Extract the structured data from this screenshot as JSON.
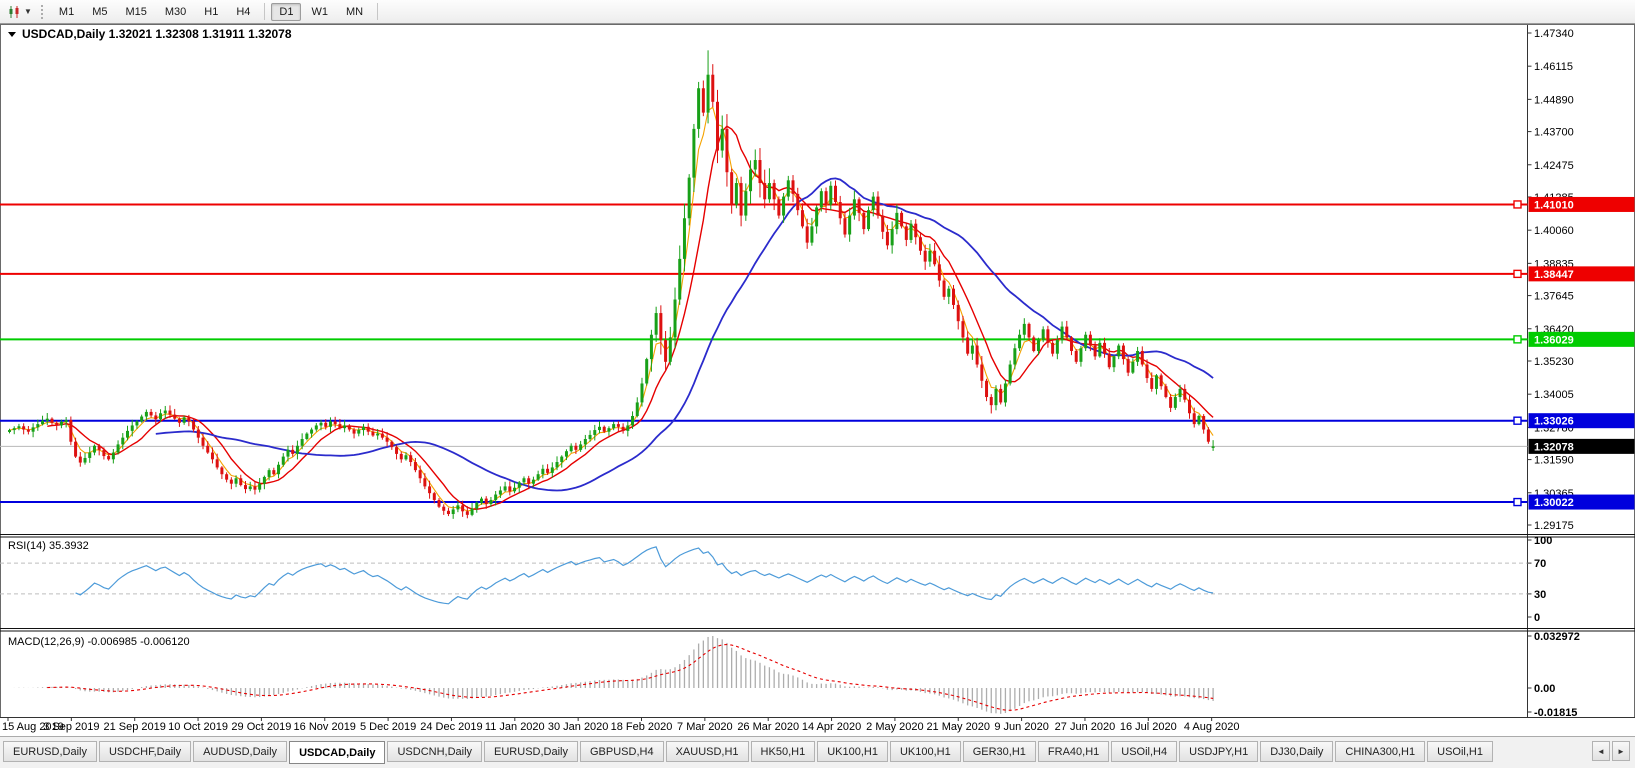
{
  "toolbar": {
    "chart_type_dropdown": "▼",
    "timeframes": [
      "M1",
      "M5",
      "M15",
      "M30",
      "H1",
      "H4",
      "D1",
      "W1",
      "MN"
    ],
    "active_timeframe": "D1"
  },
  "chart": {
    "title": "USDCAD,Daily 1.32021 1.32308 1.31911 1.32078",
    "symbol": "USDCAD",
    "period": "Daily"
  },
  "chart_data": {
    "type": "candlestick",
    "symbol": "USDCAD",
    "timeframe": "Daily",
    "ohlc_display": {
      "open": "1.32021",
      "high": "1.32308",
      "low": "1.31911",
      "close": "1.32078"
    },
    "up_color": "#18a018",
    "down_color": "#dd1111",
    "x_dates": [
      "15 Aug 2019",
      "3 Sep 2019",
      "21 Sep 2019",
      "10 Oct 2019",
      "29 Oct 2019",
      "16 Nov 2019",
      "5 Dec 2019",
      "24 Dec 2019",
      "11 Jan 2020",
      "30 Jan 2020",
      "18 Feb 2020",
      "7 Mar 2020",
      "26 Mar 2020",
      "14 Apr 2020",
      "2 May 2020",
      "21 May 2020",
      "9 Jun 2020",
      "27 Jun 2020",
      "16 Jul 2020",
      "4 Aug 2020"
    ],
    "price_axis_ticks": [
      "1.47340",
      "1.46115",
      "1.44890",
      "1.43700",
      "1.42475",
      "1.41285",
      "1.40060",
      "1.38835",
      "1.37645",
      "1.36420",
      "1.35230",
      "1.34005",
      "1.32780",
      "1.31590",
      "1.30365",
      "1.29175"
    ],
    "price_range": {
      "max": 1.4734,
      "min": 1.29175
    },
    "closes": [
      1.3268,
      1.3275,
      1.3282,
      1.327,
      1.3262,
      1.3278,
      1.329,
      1.3302,
      1.331,
      1.3295,
      1.3285,
      1.3298,
      1.3305,
      1.3225,
      1.317,
      1.3148,
      1.3165,
      1.3185,
      1.321,
      1.3195,
      1.3172,
      1.316,
      1.3185,
      1.3215,
      1.324,
      1.3265,
      1.3285,
      1.33,
      1.3318,
      1.3335,
      1.3322,
      1.3308,
      1.333,
      1.334,
      1.3325,
      1.331,
      1.3295,
      1.3315,
      1.33,
      1.327,
      1.324,
      1.321,
      1.3185,
      1.316,
      1.313,
      1.3105,
      1.3085,
      1.307,
      1.309,
      1.3065,
      1.305,
      1.306,
      1.3048,
      1.307,
      1.3095,
      1.312,
      1.3105,
      1.314,
      1.317,
      1.3195,
      1.318,
      1.321,
      1.3235,
      1.3255,
      1.327,
      1.3285,
      1.3295,
      1.328,
      1.33,
      1.329,
      1.3275,
      1.3285,
      1.327,
      1.3255,
      1.3268,
      1.328,
      1.3262,
      1.3248,
      1.3255,
      1.324,
      1.3225,
      1.3205,
      1.318,
      1.316,
      1.3175,
      1.315,
      1.312,
      1.309,
      1.306,
      1.3035,
      1.301,
      1.2985,
      1.297,
      1.2958,
      1.2975,
      1.299,
      1.2968,
      1.2955,
      1.2978,
      1.3,
      1.3015,
      1.2995,
      1.301,
      1.303,
      1.3045,
      1.306,
      1.3042,
      1.3055,
      1.3075,
      1.309,
      1.307,
      1.3085,
      1.3105,
      1.3125,
      1.311,
      1.313,
      1.315,
      1.317,
      1.319,
      1.321,
      1.3195,
      1.3215,
      1.3235,
      1.325,
      1.3268,
      1.328,
      1.3262,
      1.3275,
      1.329,
      1.328,
      1.3265,
      1.3285,
      1.332,
      1.337,
      1.344,
      1.353,
      1.362,
      1.37,
      1.36,
      1.352,
      1.361,
      1.375,
      1.39,
      1.405,
      1.42,
      1.438,
      1.453,
      1.444,
      1.458,
      1.448,
      1.43,
      1.438,
      1.422,
      1.41,
      1.418,
      1.406,
      1.415,
      1.423,
      1.4265,
      1.418,
      1.412,
      1.418,
      1.412,
      1.406,
      1.413,
      1.419,
      1.414,
      1.408,
      1.402,
      1.396,
      1.402,
      1.409,
      1.415,
      1.41,
      1.417,
      1.411,
      1.405,
      1.399,
      1.406,
      1.412,
      1.407,
      1.401,
      1.408,
      1.413,
      1.406,
      1.4,
      1.395,
      1.401,
      1.407,
      1.402,
      1.397,
      1.403,
      1.398,
      1.393,
      1.389,
      1.393,
      1.388,
      1.382,
      1.376,
      1.379,
      1.373,
      1.367,
      1.361,
      1.355,
      1.358,
      1.351,
      1.345,
      1.339,
      1.336,
      1.342,
      1.337,
      1.344,
      1.351,
      1.357,
      1.362,
      1.366,
      1.361,
      1.356,
      1.36,
      1.364,
      1.359,
      1.355,
      1.36,
      1.365,
      1.361,
      1.356,
      1.352,
      1.357,
      1.362,
      1.358,
      1.354,
      1.359,
      1.355,
      1.35,
      1.354,
      1.358,
      1.353,
      1.348,
      1.352,
      1.356,
      1.351,
      1.346,
      1.342,
      1.347,
      1.343,
      1.339,
      1.335,
      1.339,
      1.342,
      1.338,
      1.333,
      1.329,
      1.332,
      1.327,
      1.3225,
      1.3208
    ],
    "candle_overrides": {
      "148": {
        "h": 1.467
      },
      "255": {
        "o": 1.32021,
        "h": 1.32308,
        "l": 1.31911,
        "c": 1.32078
      }
    },
    "hlines": [
      {
        "price": 1.4101,
        "label": "1.41010",
        "color": "#ee0000"
      },
      {
        "price": 1.38447,
        "label": "1.38447",
        "color": "#ee0000"
      },
      {
        "price": 1.36029,
        "label": "1.36029",
        "color": "#00cc00"
      },
      {
        "price": 1.33026,
        "label": "1.33026",
        "color": "#0000dd"
      },
      {
        "price": 1.30022,
        "label": "1.30022",
        "color": "#0000dd"
      }
    ],
    "current_price": {
      "value": 1.32078,
      "label": "1.32078",
      "bg": "#000000"
    },
    "moving_averages": [
      {
        "name": "fast",
        "period": 4,
        "kind": "ema",
        "color": "#f5a300"
      },
      {
        "name": "medium",
        "period": 9,
        "kind": "sma",
        "color": "#e60000"
      },
      {
        "name": "slow",
        "period": 32,
        "kind": "sma",
        "color": "#2b2bcc"
      }
    ],
    "rsi": {
      "label": "RSI(14) 35.3932",
      "period": 14,
      "current": 35.3932,
      "levels": [
        70,
        30
      ],
      "axis_ticks": [
        {
          "v": 100,
          "t": "100"
        },
        {
          "v": 70,
          "t": "70"
        },
        {
          "v": 30,
          "t": "30"
        },
        {
          "v": 0,
          "t": "0"
        }
      ],
      "color": "#4d9bd9"
    },
    "macd": {
      "label": "MACD(12,26,9) -0.006985 -0.006120",
      "macd_value": -0.006985,
      "signal_value": -0.00612,
      "axis_max_label": "0.032972",
      "axis_zero_label": "0.00",
      "axis_min_label": "-0.01815",
      "axis_max": 0.032972,
      "axis_min": -0.01815,
      "histogram_color": "#adadad",
      "signal_color": "#e60000"
    }
  },
  "tabbar": {
    "tabs": [
      "EURUSD,Daily",
      "USDCHF,Daily",
      "AUDUSD,Daily",
      "USDCAD,Daily",
      "USDCNH,Daily",
      "EURUSD,Daily",
      "GBPUSD,H4",
      "XAUUSD,H1",
      "HK50,H1",
      "UK100,H1",
      "UK100,H1",
      "GER30,H1",
      "FRA40,H1",
      "USOil,H4",
      "USDJPY,H1",
      "DJ30,Daily",
      "CHINA300,H1",
      "USOil,H1"
    ],
    "active_index": 3,
    "left_arrow": "◄",
    "right_arrow": "►"
  }
}
